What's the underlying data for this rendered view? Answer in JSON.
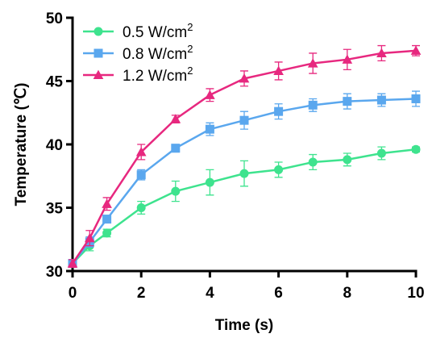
{
  "chart_data": {
    "type": "line",
    "xlabel": "Time (s)",
    "ylabel": "Temperature (℃)",
    "xlim": [
      0,
      10
    ],
    "ylim": [
      30,
      50
    ],
    "x_ticks": [
      "0",
      "2",
      "4",
      "6",
      "8",
      "10"
    ],
    "y_ticks": [
      "30",
      "35",
      "40",
      "45",
      "50"
    ],
    "legend_position": "top-left",
    "x": [
      0,
      0.5,
      1,
      2,
      3,
      4,
      5,
      6,
      7,
      8,
      9,
      10
    ],
    "series": [
      {
        "name": "0.5 W/cm",
        "name_sup": "2",
        "color": "#3ee38e",
        "marker": "circle",
        "values": [
          30.6,
          32.0,
          33.0,
          35.0,
          36.3,
          37.0,
          37.7,
          38.0,
          38.6,
          38.8,
          39.3,
          39.6
        ],
        "errors": [
          0.3,
          0.4,
          0.3,
          0.5,
          0.8,
          1.0,
          1.0,
          0.6,
          0.6,
          0.5,
          0.5,
          0.2
        ]
      },
      {
        "name": "0.8 W/cm",
        "name_sup": "2",
        "color": "#5aa7ee",
        "marker": "square",
        "values": [
          30.6,
          32.3,
          34.1,
          37.6,
          39.7,
          41.2,
          41.9,
          42.6,
          43.1,
          43.4,
          43.5,
          43.6
        ],
        "errors": [
          0.3,
          0.4,
          0.3,
          0.4,
          0.3,
          0.5,
          0.7,
          0.6,
          0.5,
          0.6,
          0.5,
          0.6
        ]
      },
      {
        "name": "1.2 W/cm",
        "name_sup": "2",
        "color": "#e7287f",
        "marker": "triangle",
        "values": [
          30.6,
          32.6,
          35.3,
          39.4,
          42.0,
          43.9,
          45.2,
          45.8,
          46.4,
          46.7,
          47.2,
          47.4
        ],
        "errors": [
          0.3,
          0.6,
          0.5,
          0.6,
          0.3,
          0.5,
          0.6,
          0.7,
          0.8,
          0.8,
          0.6,
          0.4
        ]
      }
    ]
  }
}
